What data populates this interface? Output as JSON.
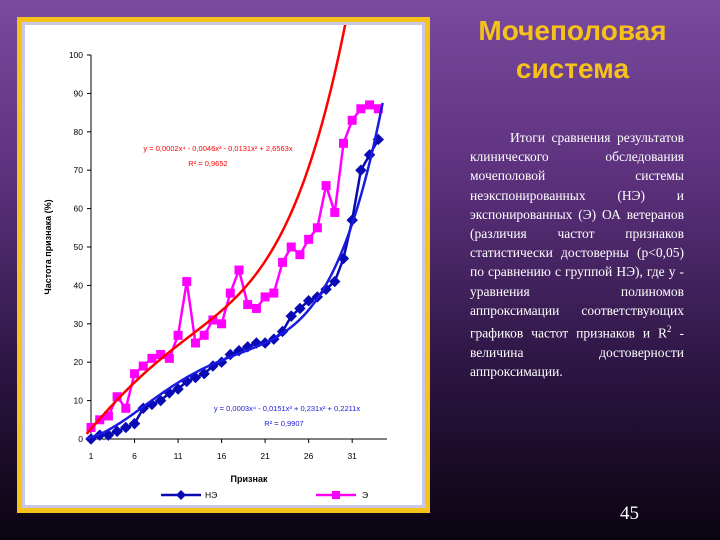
{
  "title": [
    "Мочеполовая",
    "система"
  ],
  "body_text": [
    "Итоги сравнения результатов клинического обследования мочеполовой системы неэкспонированных (НЭ) и экспонированных (Э) ОА ветеранов (различия частот признаков статистически достоверны (p<0,05) по сравнению с группой НЭ), где y - уравнения полиномов аппроксимации соответствующих графиков частот признаков и R",
    "2",
    " - величина достоверности аппроксимации."
  ],
  "page_number": "45",
  "colors": {
    "background_top": "#7a4a9e",
    "frame": "#f6c21a",
    "title": "#f6c21a",
    "series_ne": "#0a0ab4",
    "series_e": "#ff00ff",
    "trend_ne": "#1a1ae0",
    "trend_e": "#ff0000"
  },
  "chart_data": {
    "type": "line",
    "xlabel": "Признак",
    "ylabel": "Частота признака (%)",
    "xlim": [
      1,
      35
    ],
    "ylim": [
      0,
      100
    ],
    "xticks": [
      1,
      6,
      11,
      16,
      21,
      26,
      31
    ],
    "yticks": [
      0,
      10,
      20,
      30,
      40,
      50,
      60,
      70,
      80,
      90,
      100
    ],
    "legend_position": "bottom",
    "series": [
      {
        "name": "НЭ",
        "marker": "diamond",
        "x": [
          1,
          2,
          3,
          4,
          5,
          6,
          7,
          8,
          9,
          10,
          11,
          12,
          13,
          14,
          15,
          16,
          17,
          18,
          19,
          20,
          21,
          22,
          23,
          24,
          25,
          26,
          27,
          28,
          29,
          30,
          31,
          32,
          33,
          34
        ],
        "values": [
          0,
          1,
          1,
          2,
          3,
          4,
          8,
          9,
          10,
          12,
          13,
          15,
          16,
          17,
          19,
          20,
          22,
          23,
          24,
          25,
          25,
          26,
          28,
          32,
          34,
          36,
          37,
          39,
          41,
          47,
          57,
          70,
          74,
          78
        ]
      },
      {
        "name": "Э",
        "marker": "square",
        "x": [
          1,
          2,
          3,
          4,
          5,
          6,
          7,
          8,
          9,
          10,
          11,
          12,
          13,
          14,
          15,
          16,
          17,
          18,
          19,
          20,
          21,
          22,
          23,
          24,
          25,
          26,
          27,
          28,
          29,
          30,
          31,
          32,
          33,
          34
        ],
        "values": [
          3,
          5,
          6,
          11,
          8,
          17,
          19,
          21,
          22,
          21,
          27,
          41,
          25,
          27,
          31,
          30,
          38,
          44,
          35,
          34,
          37,
          38,
          46,
          50,
          48,
          52,
          55,
          66,
          59,
          77,
          83,
          86,
          87,
          86
        ]
      }
    ],
    "trendlines": [
      {
        "series": "Э",
        "equation": "y = 0,0002x⁴ - 0,0046x³ - 0,0131x² + 2,6563x",
        "r2": "R² = 0,9652",
        "coefficients": [
          0.0002,
          -0.0046,
          -0.0131,
          2.6563,
          0
        ]
      },
      {
        "series": "НЭ",
        "equation": "y = 0,0003x⁴ - 0,0151x³ + 0,231x² + 0,2211x",
        "r2": "R² = 0,9907",
        "coefficients": [
          0.0003,
          -0.0151,
          0.231,
          0.2211,
          0
        ]
      }
    ]
  }
}
